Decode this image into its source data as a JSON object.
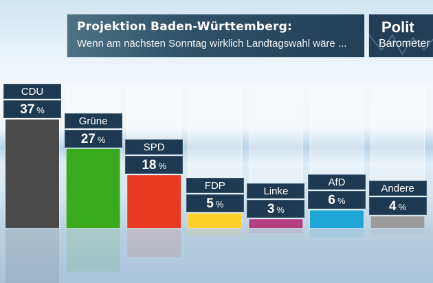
{
  "header": {
    "title": "Projektion Baden-Württemberg:",
    "subtitle": "Wenn am nächsten Sonntag wirklich Landtagswahl wäre ..."
  },
  "logo": {
    "line1": "Polit",
    "line2": "Barometer"
  },
  "chart_data": {
    "type": "bar",
    "title": "Projektion Baden-Württemberg:",
    "subtitle": "Wenn am nächsten Sonntag wirklich Landtagswahl wäre ...",
    "categories": [
      "CDU",
      "Grüne",
      "SPD",
      "FDP",
      "Linke",
      "AfD",
      "Andere"
    ],
    "values": [
      37,
      27,
      18,
      5,
      3,
      6,
      4
    ],
    "unit": "%",
    "colors": [
      "#4a4a4a",
      "#3aab1f",
      "#e83a20",
      "#fdd12a",
      "#b13f82",
      "#1ea7d7",
      "#9b9b9b"
    ],
    "xlabel": "",
    "ylabel": "",
    "ylim": [
      0,
      40
    ],
    "grid": false,
    "legend": "none"
  }
}
